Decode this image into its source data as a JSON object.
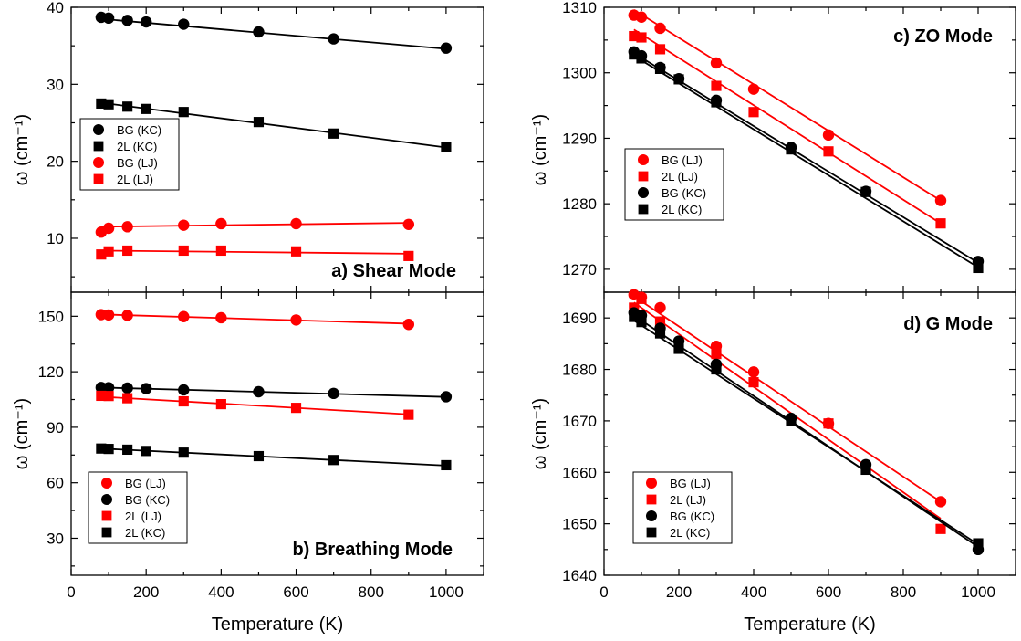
{
  "colors": {
    "red": "#ff0000",
    "black": "#000000"
  },
  "x_label": "Temperature (K)",
  "y_label": "ω (cm⁻¹)",
  "chart_data": [
    {
      "id": "a",
      "type": "scatter",
      "title": "a) Shear Mode",
      "xlabel": "",
      "ylabel": "ω (cm⁻¹)",
      "xlim": [
        0,
        1100
      ],
      "ylim": [
        3,
        40
      ],
      "xticks": [
        0,
        200,
        400,
        600,
        800,
        1000
      ],
      "yticks": [
        10,
        20,
        30,
        40
      ],
      "legend_position": "center-left",
      "series": [
        {
          "name": "BG (KC)",
          "color": "#000000",
          "marker": "circle",
          "x": [
            80,
            100,
            150,
            200,
            300,
            500,
            700,
            1000
          ],
          "y": [
            38.7,
            38.6,
            38.3,
            38.1,
            37.8,
            36.8,
            35.9,
            34.7
          ],
          "fit": [
            [
              80,
              38.5
            ],
            [
              1000,
              34.6
            ]
          ]
        },
        {
          "name": "2L (KC)",
          "color": "#000000",
          "marker": "square",
          "x": [
            80,
            100,
            150,
            200,
            300,
            500,
            700,
            1000
          ],
          "y": [
            27.5,
            27.4,
            27.1,
            26.8,
            26.4,
            25.1,
            23.6,
            21.9
          ],
          "fit": [
            [
              80,
              27.6
            ],
            [
              1000,
              21.8
            ]
          ]
        },
        {
          "name": "BG (LJ)",
          "color": "#ff0000",
          "marker": "circle",
          "x": [
            80,
            100,
            150,
            300,
            400,
            600,
            900
          ],
          "y": [
            10.8,
            11.3,
            11.5,
            11.7,
            11.9,
            11.9,
            11.8
          ],
          "fit": [
            [
              80,
              11.5
            ],
            [
              900,
              12.0
            ]
          ]
        },
        {
          "name": "2L (LJ)",
          "color": "#ff0000",
          "marker": "square",
          "x": [
            80,
            100,
            150,
            300,
            400,
            600,
            900
          ],
          "y": [
            7.9,
            8.3,
            8.4,
            8.4,
            8.4,
            8.3,
            7.7
          ],
          "fit": [
            [
              80,
              8.4
            ],
            [
              900,
              8.0
            ]
          ]
        }
      ]
    },
    {
      "id": "b",
      "type": "scatter",
      "title": "b) Breathing Mode",
      "xlabel": "Temperature (K)",
      "ylabel": "ω (cm⁻¹)",
      "xlim": [
        0,
        1100
      ],
      "ylim": [
        10,
        163
      ],
      "xticks": [
        0,
        200,
        400,
        600,
        800,
        1000
      ],
      "yticks": [
        30,
        60,
        90,
        120,
        150
      ],
      "legend_position": "bottom-left",
      "series": [
        {
          "name": "BG (LJ)",
          "color": "#ff0000",
          "marker": "circle",
          "x": [
            80,
            100,
            150,
            300,
            400,
            600,
            900
          ],
          "y": [
            150.9,
            150.7,
            150.5,
            149.8,
            149.2,
            148.0,
            145.6
          ],
          "fit": [
            [
              80,
              151.0
            ],
            [
              900,
              146.0
            ]
          ]
        },
        {
          "name": "BG (KC)",
          "color": "#000000",
          "marker": "circle",
          "x": [
            80,
            100,
            150,
            200,
            300,
            500,
            700,
            1000
          ],
          "y": [
            111.5,
            111.4,
            111.2,
            110.9,
            110.2,
            109.2,
            108.3,
            106.5
          ],
          "fit": [
            [
              80,
              111.5
            ],
            [
              1000,
              106.4
            ]
          ]
        },
        {
          "name": "2L (LJ)",
          "color": "#ff0000",
          "marker": "square",
          "x": [
            80,
            100,
            150,
            300,
            400,
            600,
            900
          ],
          "y": [
            107.0,
            106.9,
            105.7,
            104.0,
            102.5,
            100.5,
            96.8
          ],
          "fit": [
            [
              80,
              106.5
            ],
            [
              900,
              97.0
            ]
          ]
        },
        {
          "name": "2L (KC)",
          "color": "#000000",
          "marker": "square",
          "x": [
            80,
            100,
            150,
            200,
            300,
            500,
            700,
            1000
          ],
          "y": [
            78.5,
            78.3,
            77.9,
            77.2,
            76.3,
            74.4,
            72.3,
            69.5
          ],
          "fit": [
            [
              80,
              78.5
            ],
            [
              1000,
              69.3
            ]
          ]
        }
      ]
    },
    {
      "id": "c",
      "type": "scatter",
      "title": "c) ZO Mode",
      "xlabel": "",
      "ylabel": "ω (cm⁻¹)",
      "xlim": [
        0,
        1100
      ],
      "ylim": [
        1266.5,
        1310
      ],
      "xticks": [
        0,
        200,
        400,
        600,
        800,
        1000
      ],
      "yticks": [
        1270,
        1280,
        1290,
        1300,
        1310
      ],
      "legend_position": "center-left",
      "series": [
        {
          "name": "BG (LJ)",
          "color": "#ff0000",
          "marker": "circle",
          "x": [
            80,
            100,
            150,
            300,
            400,
            600,
            900
          ],
          "y": [
            1308.8,
            1308.5,
            1306.8,
            1301.5,
            1297.5,
            1290.5,
            1280.5
          ],
          "fit": [
            [
              80,
              1309.6
            ],
            [
              900,
              1280.5
            ]
          ]
        },
        {
          "name": "2L (LJ)",
          "color": "#ff0000",
          "marker": "square",
          "x": [
            80,
            100,
            150,
            300,
            400,
            600,
            900
          ],
          "y": [
            1305.6,
            1305.4,
            1303.6,
            1298.0,
            1294.0,
            1288.0,
            1277.0
          ],
          "fit": [
            [
              80,
              1306.6
            ],
            [
              900,
              1277.0
            ]
          ]
        },
        {
          "name": "BG (KC)",
          "color": "#000000",
          "marker": "circle",
          "x": [
            80,
            100,
            150,
            200,
            300,
            500,
            700,
            1000
          ],
          "y": [
            1303.2,
            1302.6,
            1300.8,
            1299.1,
            1295.8,
            1288.6,
            1281.9,
            1271.2
          ],
          "fit": [
            [
              80,
              1303.0
            ],
            [
              1000,
              1271.0
            ]
          ]
        },
        {
          "name": "2L (KC)",
          "color": "#000000",
          "marker": "square",
          "x": [
            80,
            100,
            150,
            200,
            300,
            500,
            700,
            1000
          ],
          "y": [
            1302.8,
            1302.2,
            1300.6,
            1299.0,
            1295.5,
            1288.3,
            1281.8,
            1270.2
          ],
          "fit": [
            [
              80,
              1302.6
            ],
            [
              1000,
              1270.3
            ]
          ]
        }
      ]
    },
    {
      "id": "d",
      "type": "scatter",
      "title": "d) G Mode",
      "xlabel": "Temperature (K)",
      "ylabel": "ω (cm⁻¹)",
      "xlim": [
        0,
        1100
      ],
      "ylim": [
        1640,
        1695
      ],
      "xticks": [
        0,
        200,
        400,
        600,
        800,
        1000
      ],
      "yticks": [
        1640,
        1650,
        1660,
        1670,
        1680,
        1690
      ],
      "legend_position": "bottom-left",
      "series": [
        {
          "name": "BG (LJ)",
          "color": "#ff0000",
          "marker": "circle",
          "x": [
            80,
            100,
            150,
            300,
            400,
            600,
            900
          ],
          "y": [
            1694.5,
            1694.0,
            1692.0,
            1684.5,
            1679.5,
            1669.5,
            1654.3
          ],
          "fit": [
            [
              80,
              1694.2
            ],
            [
              900,
              1654.3
            ]
          ]
        },
        {
          "name": "2L (LJ)",
          "color": "#ff0000",
          "marker": "square",
          "x": [
            80,
            100,
            150,
            300,
            400,
            600,
            900
          ],
          "y": [
            1692.0,
            1693.7,
            1689.3,
            1683.0,
            1677.5,
            1669.5,
            1649.0
          ],
          "fit": [
            [
              80,
              1693.0
            ],
            [
              900,
              1651.0
            ]
          ]
        },
        {
          "name": "BG (KC)",
          "color": "#000000",
          "marker": "circle",
          "x": [
            80,
            100,
            150,
            200,
            300,
            500,
            700,
            1000
          ],
          "y": [
            1691.0,
            1690.5,
            1688.0,
            1685.5,
            1681.0,
            1670.5,
            1661.5,
            1645.0
          ],
          "fit": [
            [
              80,
              1690.5
            ],
            [
              1000,
              1645.5
            ]
          ]
        },
        {
          "name": "2L (KC)",
          "color": "#000000",
          "marker": "square",
          "x": [
            80,
            100,
            150,
            200,
            300,
            500,
            700,
            1000
          ],
          "y": [
            1690.2,
            1689.2,
            1687.0,
            1684.0,
            1680.0,
            1670.0,
            1660.5,
            1646.2
          ],
          "fit": [
            [
              80,
              1689.5
            ],
            [
              1000,
              1646.0
            ]
          ]
        }
      ]
    }
  ]
}
